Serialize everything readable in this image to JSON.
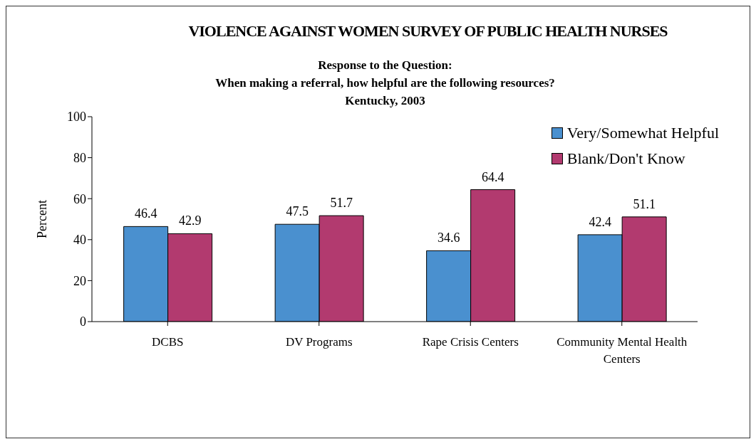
{
  "chart_data": {
    "type": "bar",
    "title": "VIOLENCE AGAINST WOMEN SURVEY OF PUBLIC HEALTH NURSES",
    "subtitle": "Response to the Question:\nWhen making a referral, how helpful are the following resources?\nKentucky, 2003",
    "ylabel": "Percent",
    "categories": [
      "DCBS",
      "DV Programs",
      "Rape Crisis Centers",
      "Community Mental Health Centers"
    ],
    "series": [
      {
        "name": "Very/Somewhat Helpful",
        "color": "#4a90cf",
        "values": [
          46.4,
          47.5,
          34.6,
          42.4
        ]
      },
      {
        "name": "Blank/Don't Know",
        "color": "#b23a6f",
        "values": [
          42.9,
          51.7,
          64.4,
          51.1
        ]
      }
    ],
    "ylim": [
      0,
      100
    ],
    "yticks": [
      0,
      20,
      40,
      60,
      80,
      100
    ],
    "data_labels": true,
    "legend": "top right"
  }
}
